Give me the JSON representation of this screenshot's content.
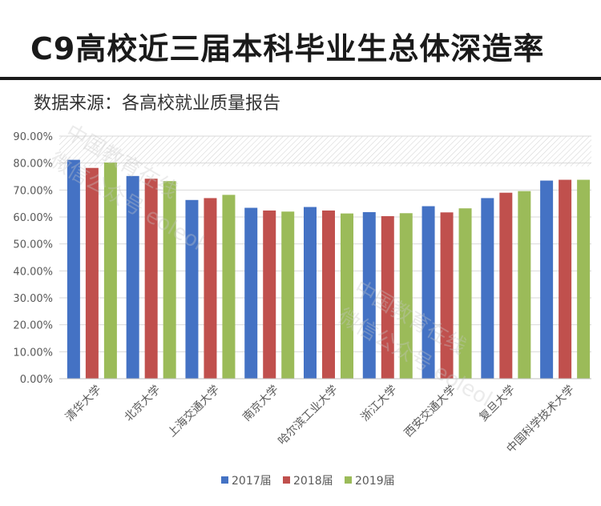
{
  "header": {
    "title": "C9高校近三届本科毕业生总体深造率",
    "subtitle": "数据来源：各高校就业质量报告"
  },
  "watermark": {
    "text_1": "中国教育在线",
    "text_2": "微信公众号 eoleol"
  },
  "colors": {
    "series": [
      "#4472C4",
      "#C0504D",
      "#9BBB59"
    ]
  },
  "chart_data": {
    "type": "bar",
    "title": "C9高校近三届本科毕业生总体深造率",
    "xlabel": "",
    "ylabel": "",
    "ylim": [
      0,
      90
    ],
    "yticks": [
      0,
      10,
      20,
      30,
      40,
      50,
      60,
      70,
      80,
      90
    ],
    "ytick_labels": [
      "0.00%",
      "10.00%",
      "20.00%",
      "30.00%",
      "40.00%",
      "50.00%",
      "60.00%",
      "70.00%",
      "80.00%",
      "90.00%"
    ],
    "grid": true,
    "legend_position": "bottom",
    "categories": [
      "清华大学",
      "北京大学",
      "上海交通大学",
      "南京大学",
      "哈尔滨工业大学",
      "浙江大学",
      "西安交通大学",
      "复旦大学",
      "中国科学技术大学"
    ],
    "series": [
      {
        "name": "2017届",
        "values": [
          81.2,
          75.2,
          66.3,
          63.4,
          63.7,
          61.8,
          64.0,
          67.0,
          73.5
        ]
      },
      {
        "name": "2018届",
        "values": [
          78.2,
          74.2,
          67.0,
          62.4,
          62.4,
          60.3,
          61.7,
          69.0,
          73.8
        ]
      },
      {
        "name": "2019届",
        "values": [
          80.2,
          73.3,
          68.2,
          62.0,
          61.3,
          61.4,
          63.2,
          69.6,
          73.8
        ]
      }
    ]
  }
}
